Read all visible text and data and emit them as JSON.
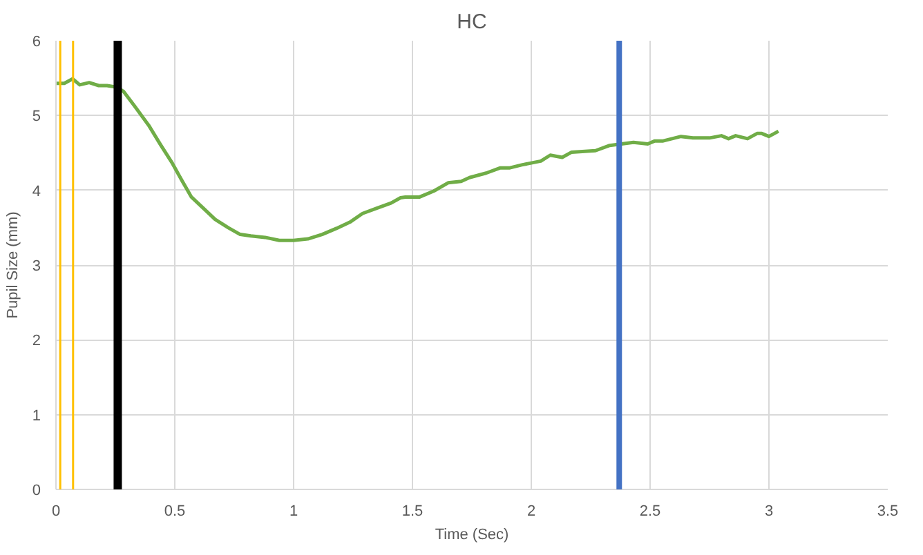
{
  "chart_data": {
    "type": "line",
    "title": "HC",
    "xlabel": "Time (Sec)",
    "ylabel": "Pupil Size (mm)",
    "xlim": [
      0,
      3.5
    ],
    "xticks": [
      0,
      0.5,
      1,
      1.5,
      2,
      2.5,
      3,
      3.5
    ],
    "ylim": [
      0,
      6
    ],
    "yticks": [
      0,
      1,
      2,
      3,
      4,
      5,
      6
    ],
    "grid": true,
    "marker": "none",
    "line_style": "solid",
    "series": [
      {
        "color": "#70ad47",
        "x": [
          0,
          0.035,
          0.07,
          0.1,
          0.14,
          0.18,
          0.215,
          0.255,
          0.285,
          0.33,
          0.39,
          0.44,
          0.49,
          0.53,
          0.57,
          0.62,
          0.67,
          0.725,
          0.775,
          0.82,
          0.88,
          0.94,
          1.0,
          1.06,
          1.12,
          1.18,
          1.24,
          1.29,
          1.35,
          1.41,
          1.45,
          1.47,
          1.53,
          1.59,
          1.65,
          1.705,
          1.74,
          1.81,
          1.87,
          1.91,
          1.96,
          2.04,
          2.08,
          2.13,
          2.17,
          2.27,
          2.33,
          2.43,
          2.49,
          2.52,
          2.555,
          2.63,
          2.68,
          2.75,
          2.8,
          2.83,
          2.86,
          2.91,
          2.95,
          2.97,
          3.0,
          3.04
        ],
        "values": [
          5.43,
          5.43,
          5.49,
          5.41,
          5.44,
          5.4,
          5.4,
          5.38,
          5.32,
          5.13,
          4.87,
          4.61,
          4.36,
          4.13,
          3.91,
          3.76,
          3.61,
          3.5,
          3.41,
          3.39,
          3.37,
          3.33,
          3.33,
          3.35,
          3.41,
          3.49,
          3.58,
          3.69,
          3.76,
          3.83,
          3.9,
          3.91,
          3.91,
          3.99,
          4.1,
          4.12,
          4.17,
          4.23,
          4.3,
          4.3,
          4.34,
          4.39,
          4.47,
          4.44,
          4.51,
          4.53,
          4.6,
          4.64,
          4.62,
          4.66,
          4.66,
          4.72,
          4.7,
          4.7,
          4.73,
          4.69,
          4.73,
          4.69,
          4.76,
          4.76,
          4.72,
          4.79
        ]
      }
    ],
    "ref_lines": [
      {
        "axis": "x",
        "value": 0.018,
        "color": "#ffc000"
      },
      {
        "axis": "x",
        "value": 0.072,
        "color": "#ffc000"
      },
      {
        "axis": "x",
        "value": 0.26,
        "color": "#000000"
      },
      {
        "axis": "x",
        "value": 2.37,
        "color": "#4472c4"
      }
    ]
  }
}
